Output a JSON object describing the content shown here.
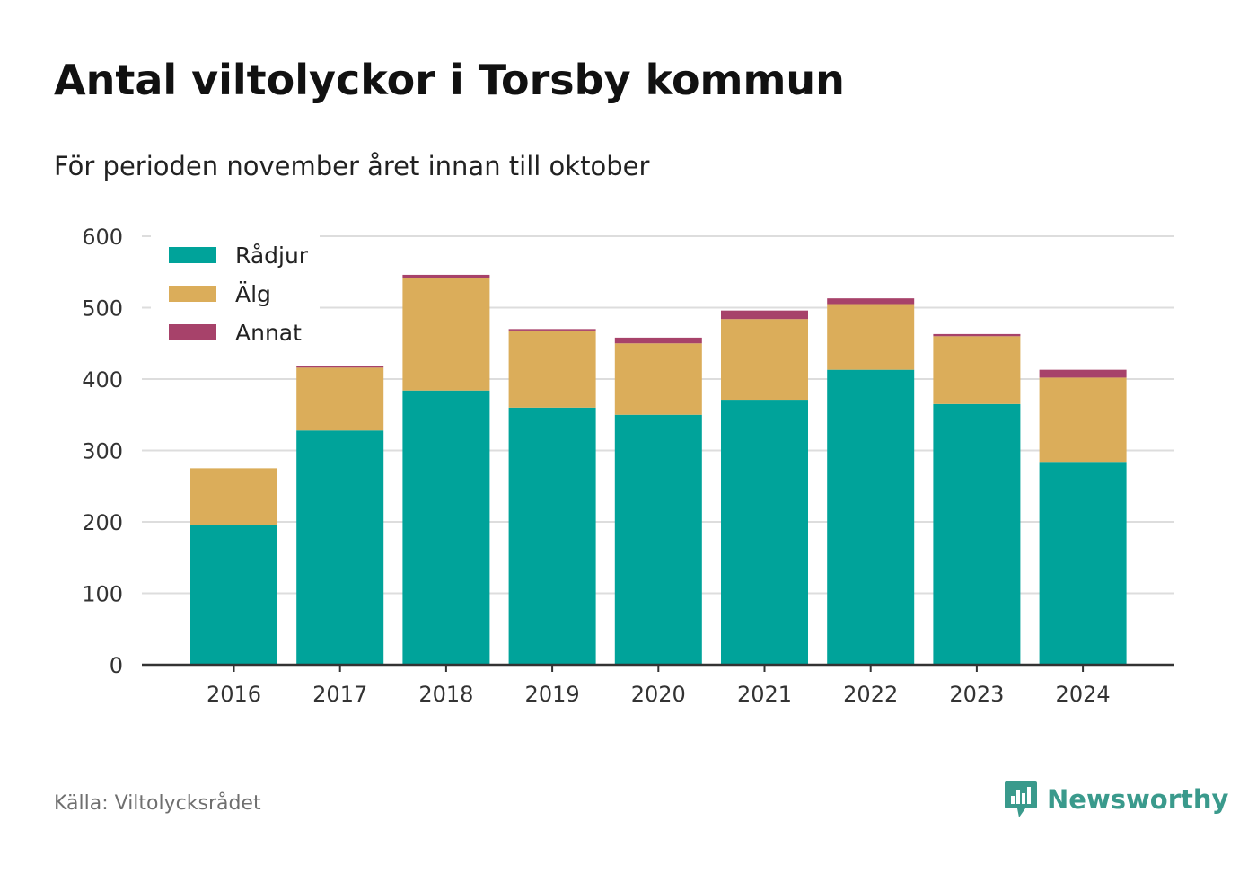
{
  "title": "Antal viltolyckor i Torsby kommun",
  "subtitle": "För perioden november året innan till oktober",
  "source": "Källa: Viltolycksrådet",
  "brand": {
    "name": "Newsworthy",
    "icon": "newsworthy-logo-icon",
    "color": "#3a9a8c"
  },
  "chart_data": {
    "type": "bar",
    "stacked": true,
    "categories": [
      "2016",
      "2017",
      "2018",
      "2019",
      "2020",
      "2021",
      "2022",
      "2023",
      "2024"
    ],
    "series": [
      {
        "name": "Rådjur",
        "color": "#00a39a",
        "values": [
          196,
          328,
          384,
          360,
          350,
          371,
          413,
          365,
          284
        ]
      },
      {
        "name": "Älg",
        "color": "#dbad5a",
        "values": [
          79,
          88,
          158,
          108,
          100,
          113,
          92,
          95,
          118
        ]
      },
      {
        "name": "Annat",
        "color": "#a7426a",
        "values": [
          0,
          2,
          4,
          2,
          8,
          12,
          8,
          3,
          11
        ]
      }
    ],
    "ylim": [
      0,
      600
    ],
    "yticks": [
      0,
      100,
      200,
      300,
      400,
      500,
      600
    ],
    "xlabel": "",
    "ylabel": "",
    "grid": true,
    "legend": "top-left"
  }
}
